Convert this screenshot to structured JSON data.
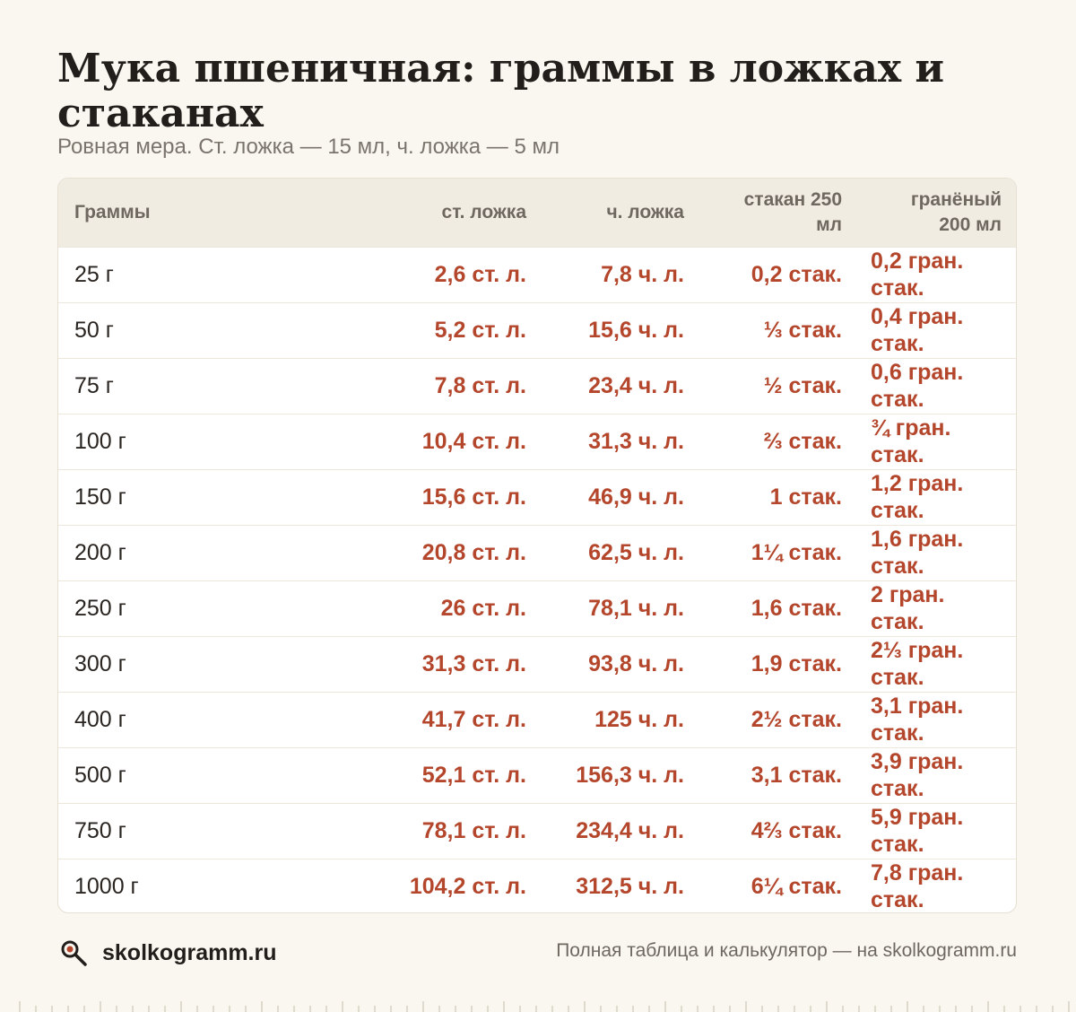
{
  "title": "Мука пшеничная: граммы в ложках и стаканах",
  "subtitle": "Ровная мера. Ст. ложка — 15 мл, ч. ложка — 5 мл",
  "table": {
    "headers": [
      "Граммы",
      "ст. ложка",
      "ч. ложка",
      "стакан 250 мл",
      "гранёный 200 мл"
    ],
    "rows": [
      [
        "25 г",
        "2,6 ст. л.",
        "7,8 ч. л.",
        "0,2 стак.",
        "0,2 гран. стак."
      ],
      [
        "50 г",
        "5,2 ст. л.",
        "15,6 ч. л.",
        "⅓ стак.",
        "0,4 гран. стак."
      ],
      [
        "75 г",
        "7,8 ст. л.",
        "23,4 ч. л.",
        "½ стак.",
        "0,6 гран. стак."
      ],
      [
        "100 г",
        "10,4 ст. л.",
        "31,3 ч. л.",
        "⅔ стак.",
        "¾ гран. стак."
      ],
      [
        "150 г",
        "15,6 ст. л.",
        "46,9 ч. л.",
        "1 стак.",
        "1,2 гран. стак."
      ],
      [
        "200 г",
        "20,8 ст. л.",
        "62,5 ч. л.",
        "1¼ стак.",
        "1,6 гран. стак."
      ],
      [
        "250 г",
        "26 ст. л.",
        "78,1 ч. л.",
        "1,6 стак.",
        "2 гран. стак."
      ],
      [
        "300 г",
        "31,3 ст. л.",
        "93,8 ч. л.",
        "1,9 стак.",
        "2⅓ гран. стак."
      ],
      [
        "400 г",
        "41,7 ст. л.",
        "125 ч. л.",
        "2½ стак.",
        "3,1 гран. стак."
      ],
      [
        "500 г",
        "52,1 ст. л.",
        "156,3 ч. л.",
        "3,1 стак.",
        "3,9 гран. стак."
      ],
      [
        "750 г",
        "78,1 ст. л.",
        "234,4 ч. л.",
        "4⅔ стак.",
        "5,9 гран. стак."
      ],
      [
        "1000 г",
        "104,2 ст. л.",
        "312,5 ч. л.",
        "6¼ стак.",
        "7,8 гран. стак."
      ]
    ]
  },
  "footer": {
    "brand": "skolkogramm.ru",
    "logo_icon": "magnifier-icon",
    "note": "Полная таблица и калькулятор — на skolkogramm.ru"
  },
  "colors": {
    "background": "#faf7f0",
    "accent": "#b4462c",
    "header_bg": "#f1ece1"
  }
}
